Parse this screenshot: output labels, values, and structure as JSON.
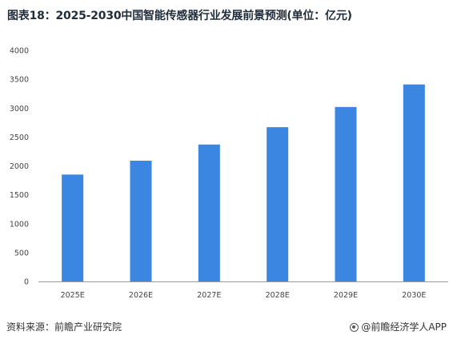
{
  "title": "图表18：2025-2030中国智能传感器行业发展前景预测(单位：亿元)",
  "footer": {
    "source": "资料来源：前瞻产业研究院",
    "brand": "@前瞻经济学人APP"
  },
  "colors": {
    "bar": "#3a86e0",
    "axis": "#999999"
  },
  "chart_data": {
    "type": "bar",
    "categories": [
      "2025E",
      "2026E",
      "2027E",
      "2028E",
      "2029E",
      "2030E"
    ],
    "values": [
      1850,
      2090,
      2370,
      2670,
      3020,
      3410
    ],
    "yticks": [
      "0",
      "500",
      "1000",
      "1500",
      "2000",
      "2500",
      "3000",
      "3500",
      "4000"
    ],
    "ylim": [
      0,
      4000
    ],
    "grid": false,
    "legend": "none"
  }
}
